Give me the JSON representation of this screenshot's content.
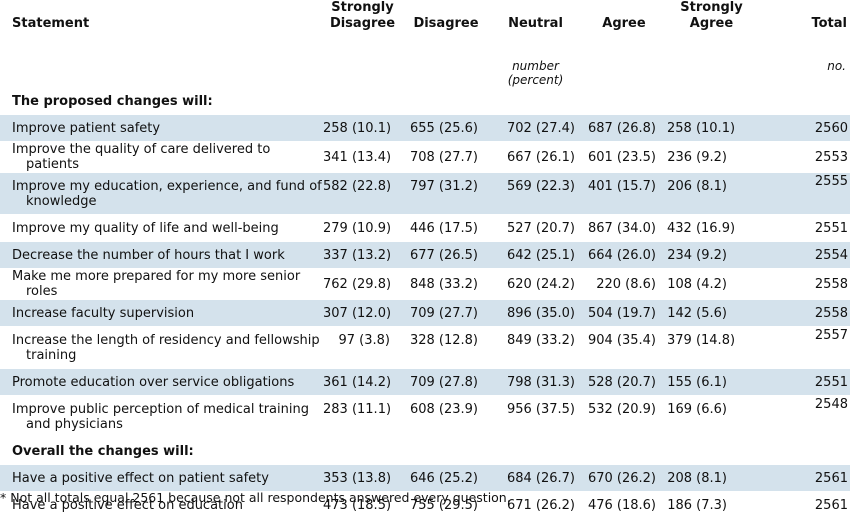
{
  "header": {
    "statement": "Statement",
    "strongly_disagree_1": "Strongly",
    "strongly_disagree_2": "Disagree",
    "disagree": "Disagree",
    "neutral": "Neutral",
    "agree": "Agree",
    "strongly_agree_1": "Strongly",
    "strongly_agree_2": "Agree",
    "total": "Total"
  },
  "units": {
    "middle": "number (percent)",
    "total": "no."
  },
  "sections": [
    {
      "title": "The proposed changes will:",
      "rows": [
        {
          "statement": "Improve patient safety",
          "sd": "258 (10.1)",
          "d": "655 (25.6)",
          "n": "702 (27.4)",
          "a": "687 (26.8)",
          "sa": "258 (10.1)",
          "total": "2560"
        },
        {
          "statement": "Improve the quality of care delivered to patients",
          "sd": "341 (13.4)",
          "d": "708 (27.7)",
          "n": "667 (26.1)",
          "a": "601 (23.5)",
          "sa": "236 (9.2)",
          "total": "2553"
        },
        {
          "statement": "Improve my education, experience, and fund of knowledge",
          "sd": "582 (22.8)",
          "d": "797 (31.2)",
          "n": "569 (22.3)",
          "a": "401 (15.7)",
          "sa": "206 (8.1)",
          "total": "2555"
        },
        {
          "statement": "Improve my quality of life and well-being",
          "sd": "279 (10.9)",
          "d": "446 (17.5)",
          "n": "527 (20.7)",
          "a": "867 (34.0)",
          "sa": "432 (16.9)",
          "total": "2551"
        },
        {
          "statement": "Decrease the number of hours that I work",
          "sd": "337 (13.2)",
          "d": "677 (26.5)",
          "n": "642 (25.1)",
          "a": "664 (26.0)",
          "sa": "234 (9.2)",
          "total": "2554"
        },
        {
          "statement": "Make me more prepared for my more senior roles",
          "sd": "762 (29.8)",
          "d": "848 (33.2)",
          "n": "620 (24.2)",
          "a": "220 (8.6)",
          "sa": "108 (4.2)",
          "total": "2558"
        },
        {
          "statement": "Increase faculty supervision",
          "sd": "307 (12.0)",
          "d": "709 (27.7)",
          "n": "896 (35.0)",
          "a": "504 (19.7)",
          "sa": "142 (5.6)",
          "total": "2558"
        },
        {
          "statement": "Increase the length of residency and fellowship training",
          "sd": "97 (3.8)",
          "d": "328 (12.8)",
          "n": "849 (33.2)",
          "a": "904 (35.4)",
          "sa": "379 (14.8)",
          "total": "2557"
        },
        {
          "statement": "Promote education over service obligations",
          "sd": "361 (14.2)",
          "d": "709 (27.8)",
          "n": "798 (31.3)",
          "a": "528 (20.7)",
          "sa": "155 (6.1)",
          "total": "2551"
        },
        {
          "statement": "Improve public perception of medical training and physicians",
          "sd": "283 (11.1)",
          "d": "608 (23.9)",
          "n": "956 (37.5)",
          "a": "532 (20.9)",
          "sa": "169 (6.6)",
          "total": "2548"
        }
      ]
    },
    {
      "title": "Overall the changes will:",
      "rows": [
        {
          "statement": "Have a positive effect on patient safety",
          "sd": "353 (13.8)",
          "d": "646 (25.2)",
          "n": "684 (26.7)",
          "a": "670 (26.2)",
          "sa": "208 (8.1)",
          "total": "2561"
        },
        {
          "statement": "Have a positive effect on education",
          "sd": "473 (18.5)",
          "d": "755 (29.5)",
          "n": "671 (26.2)",
          "a": "476 (18.6)",
          "sa": "186 (7.3)",
          "total": "2561"
        }
      ]
    }
  ],
  "footnote": "* Not all totals equal 2561 because not all respondents answered every question."
}
